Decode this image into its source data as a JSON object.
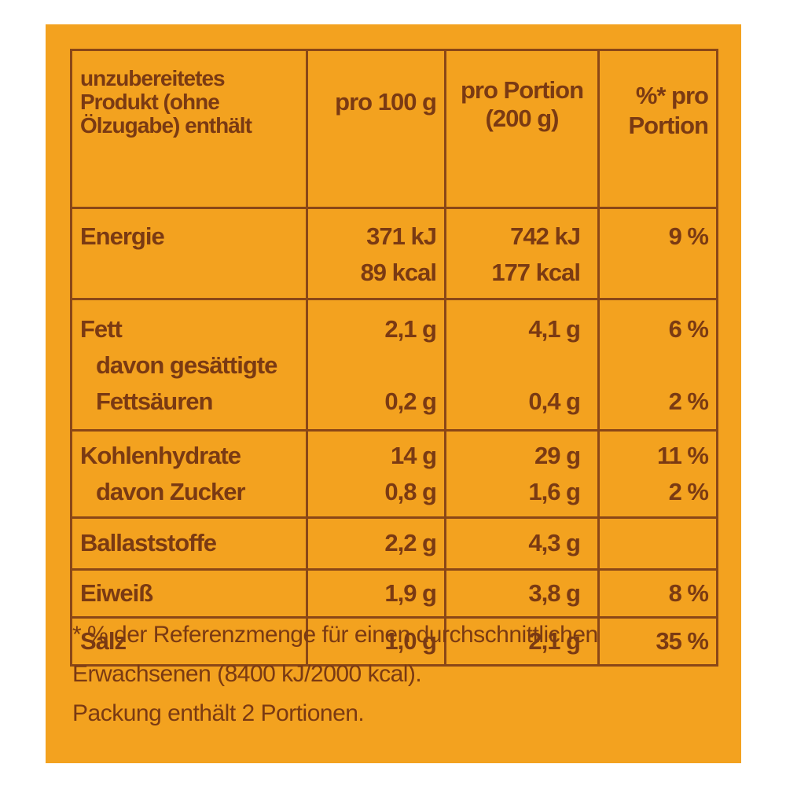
{
  "colors": {
    "background": "#f3a21f",
    "text": "#7a3a13",
    "border": "#8a4717"
  },
  "header": {
    "col1": [
      "unzubereitetes",
      "Produkt (ohne",
      "Ölzugabe) enthält"
    ],
    "col2": [
      "pro 100 g"
    ],
    "col3": [
      "pro Portion",
      "(200 g)"
    ],
    "col4": [
      "%* pro",
      "Portion"
    ]
  },
  "rows": [
    {
      "label": [
        "Energie"
      ],
      "per100": [
        "371 kJ",
        "89 kcal"
      ],
      "perPortion": [
        "742 kJ",
        "177 kcal"
      ],
      "percent": [
        "9 %"
      ]
    },
    {
      "label": [
        "Fett",
        "davon gesättigte",
        "Fettsäuren"
      ],
      "per100": [
        "2,1 g",
        "",
        "0,2 g"
      ],
      "perPortion": [
        "4,1 g",
        "",
        "0,4 g"
      ],
      "percent": [
        "6 %",
        "",
        "2 %"
      ]
    },
    {
      "label": [
        "Kohlenhydrate",
        "davon Zucker"
      ],
      "per100": [
        "14 g",
        "0,8 g"
      ],
      "perPortion": [
        "29 g",
        "1,6 g"
      ],
      "percent": [
        "11 %",
        "2 %"
      ]
    },
    {
      "label": [
        "Ballaststoffe"
      ],
      "per100": [
        "2,2 g"
      ],
      "perPortion": [
        "4,3 g"
      ],
      "percent": [
        ""
      ]
    },
    {
      "label": [
        "Eiweiß"
      ],
      "per100": [
        "1,9 g"
      ],
      "perPortion": [
        "3,8 g"
      ],
      "percent": [
        "8 %"
      ]
    },
    {
      "label": [
        "Salz"
      ],
      "per100": [
        "1,0 g"
      ],
      "perPortion": [
        "2,1 g"
      ],
      "percent": [
        "35 %"
      ]
    }
  ],
  "footnote": [
    "* % der Referenzmenge für einen durchschnittlichen",
    "Erwachsenen (8400 kJ/2000 kcal).",
    "Packung enthält 2 Portionen."
  ]
}
